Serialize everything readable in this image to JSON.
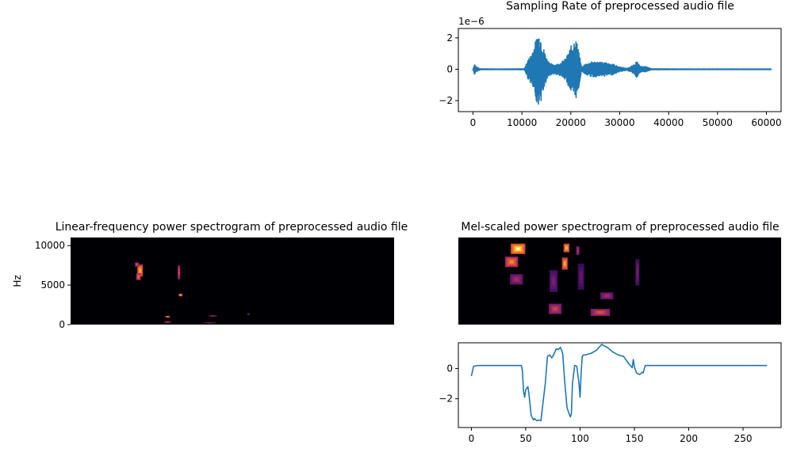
{
  "chart_data": [
    {
      "id": "waveform",
      "type": "line",
      "title": "Sampling Rate of preprocessed audio file",
      "y_offset_label": "1e−6",
      "xlim": [
        -3000,
        63000
      ],
      "ylim": [
        -2.7,
        2.6
      ],
      "xticks": [
        0,
        10000,
        20000,
        30000,
        40000,
        50000,
        60000
      ],
      "xtick_labels": [
        "0",
        "10000",
        "20000",
        "30000",
        "40000",
        "50000",
        "60000"
      ],
      "yticks": [
        -2,
        0,
        2
      ],
      "ytick_labels": [
        "−2",
        "0",
        "2"
      ],
      "color": "#1f77b4",
      "envelope": [
        {
          "x": 0,
          "a": 0.05
        },
        {
          "x": 300,
          "a": 0.35
        },
        {
          "x": 700,
          "a": 0.15
        },
        {
          "x": 1500,
          "a": 0.03
        },
        {
          "x": 5000,
          "a": 0.02
        },
        {
          "x": 10500,
          "a": 0.03
        },
        {
          "x": 11200,
          "a": 0.6
        },
        {
          "x": 11800,
          "a": 0.9
        },
        {
          "x": 12600,
          "a": 1.6
        },
        {
          "x": 13200,
          "a": 2.3
        },
        {
          "x": 13800,
          "a": 2.2
        },
        {
          "x": 14400,
          "a": 1.4
        },
        {
          "x": 15200,
          "a": 0.6
        },
        {
          "x": 16200,
          "a": 0.3
        },
        {
          "x": 17500,
          "a": 0.35
        },
        {
          "x": 19000,
          "a": 0.7
        },
        {
          "x": 20200,
          "a": 1.6
        },
        {
          "x": 20900,
          "a": 2.0
        },
        {
          "x": 21500,
          "a": 1.5
        },
        {
          "x": 22200,
          "a": 0.1
        },
        {
          "x": 23000,
          "a": 0.35
        },
        {
          "x": 24500,
          "a": 0.5
        },
        {
          "x": 26500,
          "a": 0.45
        },
        {
          "x": 28500,
          "a": 0.35
        },
        {
          "x": 30000,
          "a": 0.15
        },
        {
          "x": 31500,
          "a": 0.06
        },
        {
          "x": 33000,
          "a": 0.3
        },
        {
          "x": 33400,
          "a": 0.55
        },
        {
          "x": 34200,
          "a": 0.2
        },
        {
          "x": 35500,
          "a": 0.15
        },
        {
          "x": 36500,
          "a": 0.03
        },
        {
          "x": 45000,
          "a": 0.02
        },
        {
          "x": 61000,
          "a": 0.02
        }
      ],
      "n_samples": 61000
    },
    {
      "id": "linear-spectrogram",
      "type": "heatmap",
      "title": "Linear-frequency power spectrogram of preprocessed audio file",
      "ylabel": "Hz",
      "ylim": [
        0,
        11025
      ],
      "yticks": [
        0,
        5000,
        10000
      ],
      "ytick_labels": [
        "0",
        "5000",
        "10000"
      ],
      "background": "#000004",
      "blobs": [
        {
          "t": 0.215,
          "f": 0.62,
          "w": 0.018,
          "h": 0.14,
          "v": 0.85
        },
        {
          "t": 0.21,
          "f": 0.55,
          "w": 0.014,
          "h": 0.08,
          "v": 0.7
        },
        {
          "t": 0.205,
          "f": 0.69,
          "w": 0.012,
          "h": 0.05,
          "v": 0.6
        },
        {
          "t": 0.335,
          "f": 0.6,
          "w": 0.008,
          "h": 0.16,
          "v": 0.6
        },
        {
          "t": 0.34,
          "f": 0.34,
          "w": 0.012,
          "h": 0.03,
          "v": 0.85
        },
        {
          "t": 0.3,
          "f": 0.09,
          "w": 0.014,
          "h": 0.02,
          "v": 0.8
        },
        {
          "t": 0.3,
          "f": 0.03,
          "w": 0.02,
          "h": 0.015,
          "v": 0.6
        },
        {
          "t": 0.44,
          "f": 0.1,
          "w": 0.025,
          "h": 0.012,
          "v": 0.5
        },
        {
          "t": 0.43,
          "f": 0.02,
          "w": 0.04,
          "h": 0.01,
          "v": 0.4
        },
        {
          "t": 0.55,
          "f": 0.12,
          "w": 0.008,
          "h": 0.02,
          "v": 0.35
        }
      ]
    },
    {
      "id": "mel-spectrogram",
      "type": "heatmap",
      "title": "Mel-scaled power spectrogram of preprocessed audio file",
      "background": "#000004",
      "blobs": [
        {
          "t": 0.185,
          "f": 0.87,
          "w": 0.045,
          "h": 0.12,
          "v": 1.0
        },
        {
          "t": 0.165,
          "f": 0.72,
          "w": 0.04,
          "h": 0.12,
          "v": 0.75
        },
        {
          "t": 0.18,
          "f": 0.52,
          "w": 0.04,
          "h": 0.12,
          "v": 0.45
        },
        {
          "t": 0.335,
          "f": 0.88,
          "w": 0.018,
          "h": 0.1,
          "v": 0.9
        },
        {
          "t": 0.33,
          "f": 0.7,
          "w": 0.018,
          "h": 0.14,
          "v": 0.85
        },
        {
          "t": 0.3,
          "f": 0.18,
          "w": 0.04,
          "h": 0.12,
          "v": 0.55
        },
        {
          "t": 0.295,
          "f": 0.5,
          "w": 0.025,
          "h": 0.25,
          "v": 0.35
        },
        {
          "t": 0.44,
          "f": 0.14,
          "w": 0.06,
          "h": 0.08,
          "v": 0.6
        },
        {
          "t": 0.46,
          "f": 0.33,
          "w": 0.04,
          "h": 0.08,
          "v": 0.45
        },
        {
          "t": 0.38,
          "f": 0.55,
          "w": 0.02,
          "h": 0.3,
          "v": 0.3
        },
        {
          "t": 0.555,
          "f": 0.6,
          "w": 0.012,
          "h": 0.3,
          "v": 0.35
        },
        {
          "t": 0.37,
          "f": 0.85,
          "w": 0.01,
          "h": 0.1,
          "v": 0.5
        }
      ]
    },
    {
      "id": "feature-curve",
      "type": "line",
      "title": "",
      "xlim": [
        -12,
        285
      ],
      "ylim": [
        -3.9,
        1.7
      ],
      "xticks": [
        0,
        50,
        100,
        150,
        200,
        250
      ],
      "xtick_labels": [
        "0",
        "50",
        "100",
        "150",
        "200",
        "250"
      ],
      "yticks": [
        -2,
        0
      ],
      "ytick_labels": [
        "−2",
        "0"
      ],
      "color": "#1f77b4",
      "x": [
        0,
        2,
        6,
        46,
        47,
        48,
        49,
        50,
        52,
        53,
        55,
        57,
        58,
        60,
        62,
        64,
        66,
        68,
        70,
        72,
        74,
        76,
        78,
        80,
        82,
        84,
        86,
        88,
        90,
        91,
        92,
        93,
        95,
        97,
        99,
        100,
        101,
        102,
        103,
        105,
        110,
        115,
        120,
        122,
        125,
        130,
        135,
        140,
        145,
        148,
        149,
        150,
        152,
        155,
        157,
        158,
        160,
        161,
        163,
        200,
        250,
        272
      ],
      "y": [
        -0.5,
        0.15,
        0.2,
        0.2,
        -0.2,
        -1.5,
        -1.9,
        -1.4,
        -1.2,
        -1.7,
        -3.1,
        -3.4,
        -3.3,
        -3.45,
        -3.4,
        -3.45,
        -2.2,
        -1.0,
        0.8,
        0.9,
        0.7,
        0.95,
        1.3,
        1.25,
        1.4,
        1.0,
        -1.0,
        -2.6,
        -3.0,
        -3.2,
        -3.0,
        -1.0,
        0.2,
        0.15,
        -1.0,
        -1.9,
        -0.3,
        0.8,
        0.9,
        0.9,
        1.0,
        1.2,
        1.6,
        1.5,
        1.4,
        1.1,
        0.9,
        0.8,
        0.3,
        0.05,
        0.6,
        0.1,
        -0.3,
        -0.4,
        -0.25,
        -0.3,
        0.2,
        0.2,
        0.2,
        0.2,
        0.2,
        0.2
      ]
    }
  ]
}
